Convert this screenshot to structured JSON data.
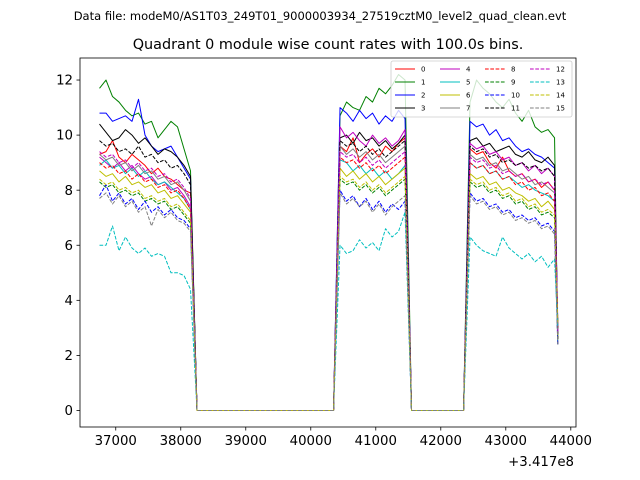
{
  "chart_data": {
    "type": "line",
    "suptitle": "Data file: modeM0/AS1T03_249T01_9000003934_27519cztM0_level2_quad_clean.evt",
    "title": "Quadrant 0 module wise count rates with 100.0s bins.",
    "xlabel": "",
    "ylabel": "",
    "x_offset_label": "+3.417e8",
    "xlim": [
      36450,
      44080
    ],
    "ylim": [
      -0.6,
      12.8
    ],
    "xticks": [
      37000,
      38000,
      39000,
      40000,
      41000,
      42000,
      43000,
      44000
    ],
    "xtick_labels": [
      "37000",
      "38000",
      "39000",
      "40000",
      "41000",
      "42000",
      "43000",
      "44000"
    ],
    "yticks": [
      0,
      2,
      4,
      6,
      8,
      10,
      12
    ],
    "ytick_labels": [
      "0",
      "2",
      "4",
      "6",
      "8",
      "10",
      "12"
    ],
    "legend_loc": "upper right",
    "segments": [
      {
        "start": 36750,
        "end": 38150,
        "step": 100
      },
      {
        "start": 40450,
        "end": 41450,
        "step": 100
      },
      {
        "start": 42450,
        "end": 43750,
        "step": 100
      }
    ],
    "series": [
      {
        "name": "0",
        "color": "#ff0000",
        "style": "solid",
        "s1": [
          9.3,
          9.4,
          9.8,
          9.2,
          9.0,
          9.3,
          9.1,
          8.9,
          8.6,
          8.8,
          8.5,
          8.4,
          8.2,
          8.0,
          7.9
        ],
        "s2": [
          9.6,
          9.4,
          9.9,
          9.0,
          9.3,
          9.5,
          9.2,
          9.6,
          9.4,
          9.7,
          9.9
        ],
        "s3": [
          9.5,
          9.3,
          9.4,
          9.0,
          8.8,
          9.2,
          8.7,
          8.5,
          8.6,
          8.3,
          8.4,
          8.1,
          8.3,
          8.0
        ]
      },
      {
        "name": "1",
        "color": "#008000",
        "style": "solid",
        "s1": [
          11.7,
          12.0,
          11.4,
          11.2,
          10.9,
          10.7,
          10.8,
          10.4,
          10.5,
          9.9,
          10.2,
          10.5,
          10.3,
          9.5,
          8.7
        ],
        "s2": [
          10.7,
          11.2,
          11.0,
          10.9,
          11.4,
          11.2,
          11.7,
          11.5,
          11.8,
          12.2,
          12.0
        ],
        "s3": [
          11.2,
          12.0,
          11.7,
          11.5,
          11.2,
          11.0,
          11.3,
          10.8,
          10.5,
          10.9,
          10.3,
          10.1,
          10.2,
          9.9
        ]
      },
      {
        "name": "2",
        "color": "#0000ff",
        "style": "solid",
        "s1": [
          10.8,
          10.8,
          10.5,
          10.6,
          10.7,
          10.5,
          11.3,
          10.0,
          9.6,
          9.4,
          9.5,
          9.6,
          9.2,
          8.8,
          8.4
        ],
        "s2": [
          11.0,
          10.8,
          10.5,
          10.9,
          10.6,
          10.8,
          10.4,
          10.7,
          10.5,
          10.9,
          10.6
        ],
        "s3": [
          10.5,
          10.3,
          10.4,
          10.0,
          10.2,
          9.8,
          9.9,
          9.6,
          9.4,
          9.5,
          9.3,
          9.2,
          9.0,
          8.8
        ]
      },
      {
        "name": "3",
        "color": "#000000",
        "style": "solid",
        "s1": [
          10.4,
          10.1,
          9.8,
          9.9,
          10.2,
          10.0,
          9.7,
          9.9,
          9.6,
          9.3,
          9.5,
          9.4,
          9.2,
          8.9,
          8.5
        ],
        "s2": [
          9.9,
          10.0,
          9.7,
          10.1,
          9.8,
          9.9,
          9.6,
          9.8,
          9.5,
          9.7,
          10.0
        ],
        "s3": [
          9.8,
          9.9,
          9.6,
          9.7,
          9.4,
          9.5,
          9.6,
          9.3,
          9.2,
          9.4,
          9.1,
          9.0,
          9.2,
          8.9
        ]
      },
      {
        "name": "4",
        "color": "#bf00bf",
        "style": "solid",
        "s1": [
          9.2,
          9.0,
          8.8,
          9.0,
          8.7,
          8.9,
          8.6,
          8.4,
          8.5,
          8.2,
          8.3,
          8.0,
          8.1,
          7.8,
          7.4
        ],
        "s2": [
          10.3,
          9.9,
          10.1,
          9.8,
          9.6,
          10.0,
          9.7,
          9.9,
          9.6,
          9.8,
          10.2
        ],
        "s3": [
          9.7,
          9.5,
          9.6,
          9.3,
          9.4,
          9.1,
          9.2,
          8.9,
          9.0,
          8.7,
          8.9,
          8.6,
          8.8,
          8.5
        ]
      },
      {
        "name": "5",
        "color": "#00bfbf",
        "style": "solid",
        "s1": [
          8.9,
          9.1,
          8.8,
          8.9,
          8.6,
          8.8,
          8.5,
          8.7,
          8.4,
          8.2,
          8.3,
          8.1,
          7.9,
          7.7,
          7.3
        ],
        "s2": [
          9.1,
          9.0,
          8.7,
          8.9,
          8.6,
          8.8,
          8.5,
          8.7,
          8.4,
          8.6,
          8.9
        ],
        "s3": [
          9.0,
          8.8,
          8.9,
          8.6,
          8.7,
          8.4,
          8.5,
          8.3,
          8.1,
          8.2,
          8.0,
          7.9,
          7.8,
          7.6
        ]
      },
      {
        "name": "6",
        "color": "#bfbf00",
        "style": "solid",
        "s1": [
          8.7,
          8.5,
          8.6,
          8.3,
          8.5,
          8.2,
          8.3,
          8.1,
          8.2,
          7.9,
          8.0,
          7.7,
          7.8,
          7.5,
          7.2
        ],
        "s2": [
          8.8,
          8.5,
          8.7,
          8.4,
          8.6,
          8.3,
          8.5,
          8.2,
          8.4,
          8.6,
          8.8
        ],
        "s3": [
          8.6,
          8.4,
          8.5,
          8.2,
          8.3,
          8.0,
          8.1,
          7.9,
          7.8,
          7.6,
          7.7,
          7.4,
          7.6,
          7.3
        ]
      },
      {
        "name": "7",
        "color": "#808080",
        "style": "solid",
        "s1": [
          9.3,
          9.1,
          9.2,
          8.9,
          9.0,
          8.7,
          8.9,
          8.6,
          8.7,
          8.4,
          8.5,
          8.2,
          8.3,
          8.0,
          7.6
        ],
        "s2": [
          9.6,
          9.3,
          9.5,
          9.2,
          9.4,
          9.1,
          9.3,
          9.0,
          9.2,
          9.4,
          9.6
        ],
        "s3": [
          9.3,
          9.1,
          9.2,
          8.9,
          9.0,
          8.7,
          8.8,
          8.6,
          8.4,
          8.5,
          8.2,
          8.3,
          8.1,
          7.9
        ]
      },
      {
        "name": "8",
        "color": "#ff0000",
        "style": "dashed",
        "s1": [
          9.0,
          8.8,
          8.9,
          8.6,
          8.7,
          8.4,
          8.6,
          8.3,
          8.4,
          8.1,
          8.2,
          7.9,
          8.0,
          7.7,
          7.3
        ],
        "s2": [
          9.2,
          9.0,
          9.1,
          8.8,
          9.0,
          8.7,
          8.9,
          8.6,
          8.8,
          9.0,
          9.2
        ],
        "s3": [
          9.0,
          8.8,
          8.9,
          8.6,
          8.7,
          8.4,
          8.5,
          8.2,
          8.3,
          8.0,
          8.1,
          7.8,
          7.9,
          7.6
        ]
      },
      {
        "name": "9",
        "color": "#008000",
        "style": "dashed",
        "s1": [
          8.3,
          8.1,
          8.2,
          7.9,
          8.0,
          7.8,
          7.9,
          7.6,
          7.7,
          7.5,
          7.6,
          7.3,
          7.4,
          7.1,
          6.8
        ],
        "s2": [
          8.4,
          8.2,
          8.3,
          8.0,
          8.2,
          7.9,
          8.1,
          7.8,
          8.0,
          8.2,
          8.4
        ],
        "s3": [
          8.3,
          8.1,
          8.2,
          7.9,
          8.0,
          7.7,
          7.8,
          7.5,
          7.6,
          7.3,
          7.4,
          7.1,
          7.2,
          7.0
        ]
      },
      {
        "name": "10",
        "color": "#0000ff",
        "style": "dashed",
        "s1": [
          7.8,
          8.2,
          7.6,
          7.9,
          7.5,
          7.7,
          7.3,
          7.6,
          7.2,
          7.4,
          7.1,
          7.3,
          7.0,
          6.9,
          6.6
        ],
        "s2": [
          8.0,
          7.6,
          7.8,
          7.4,
          7.7,
          7.3,
          7.6,
          7.2,
          7.5,
          7.3,
          7.6
        ],
        "s3": [
          7.9,
          7.6,
          7.7,
          7.4,
          7.5,
          7.2,
          7.3,
          7.0,
          7.1,
          6.9,
          7.0,
          6.7,
          6.8,
          6.5
        ]
      },
      {
        "name": "11",
        "color": "#000000",
        "style": "dashed",
        "s1": [
          9.8,
          9.6,
          9.7,
          9.4,
          9.5,
          9.3,
          9.6,
          9.2,
          9.3,
          9.0,
          9.1,
          8.8,
          8.9,
          8.6,
          8.2
        ],
        "s2": [
          9.8,
          9.6,
          9.7,
          9.4,
          9.6,
          9.3,
          9.5,
          9.2,
          9.4,
          9.6,
          9.8
        ],
        "s3": [
          9.6,
          9.4,
          9.5,
          9.2,
          9.3,
          9.0,
          9.1,
          8.9,
          9.0,
          8.8,
          8.9,
          8.7,
          8.8,
          8.5
        ]
      },
      {
        "name": "12",
        "color": "#bf00bf",
        "style": "dashed",
        "s1": [
          9.4,
          9.2,
          9.3,
          9.0,
          9.1,
          8.8,
          9.0,
          8.7,
          8.8,
          8.5,
          8.6,
          8.3,
          8.4,
          8.1,
          7.7
        ],
        "s2": [
          9.4,
          9.2,
          9.3,
          9.0,
          9.2,
          8.9,
          9.1,
          8.8,
          9.0,
          9.2,
          9.4
        ],
        "s3": [
          9.2,
          9.0,
          9.1,
          8.8,
          8.9,
          8.6,
          8.7,
          8.5,
          8.6,
          8.3,
          8.4,
          8.2,
          8.3,
          8.0
        ]
      },
      {
        "name": "13",
        "color": "#00bfbf",
        "style": "dashed",
        "s1": [
          6.0,
          6.0,
          6.7,
          5.8,
          6.3,
          5.9,
          5.7,
          5.9,
          5.6,
          5.7,
          5.6,
          5.0,
          5.0,
          4.9,
          4.4
        ],
        "s2": [
          6.0,
          5.7,
          5.8,
          6.2,
          5.9,
          6.1,
          5.8,
          6.6,
          6.3,
          6.5,
          7.2
        ],
        "s3": [
          6.3,
          6.0,
          5.8,
          5.7,
          5.6,
          6.3,
          5.9,
          5.7,
          5.5,
          5.7,
          5.4,
          5.6,
          5.2,
          5.5
        ]
      },
      {
        "name": "14",
        "color": "#bfbf00",
        "style": "dashed",
        "s1": [
          8.4,
          8.2,
          8.3,
          8.0,
          8.1,
          7.9,
          8.0,
          7.7,
          7.8,
          7.6,
          7.7,
          7.4,
          7.5,
          7.2,
          6.9
        ],
        "s2": [
          8.5,
          8.3,
          8.4,
          8.1,
          8.3,
          8.0,
          8.2,
          7.9,
          8.1,
          8.3,
          8.5
        ],
        "s3": [
          8.4,
          8.2,
          8.3,
          8.0,
          8.1,
          7.8,
          7.9,
          7.6,
          7.7,
          7.4,
          7.5,
          7.2,
          7.3,
          7.1
        ]
      },
      {
        "name": "15",
        "color": "#808080",
        "style": "dashed",
        "s1": [
          7.7,
          7.9,
          7.5,
          7.8,
          7.4,
          7.6,
          7.2,
          7.4,
          6.7,
          7.3,
          7.0,
          7.2,
          6.9,
          6.8,
          6.5
        ],
        "s2": [
          7.9,
          7.5,
          7.7,
          7.4,
          7.6,
          7.2,
          7.5,
          7.1,
          7.4,
          7.6,
          7.8
        ],
        "s3": [
          7.8,
          7.5,
          7.6,
          7.3,
          7.4,
          7.1,
          7.2,
          6.9,
          7.0,
          6.8,
          6.9,
          6.6,
          6.7,
          6.4
        ]
      }
    ]
  }
}
